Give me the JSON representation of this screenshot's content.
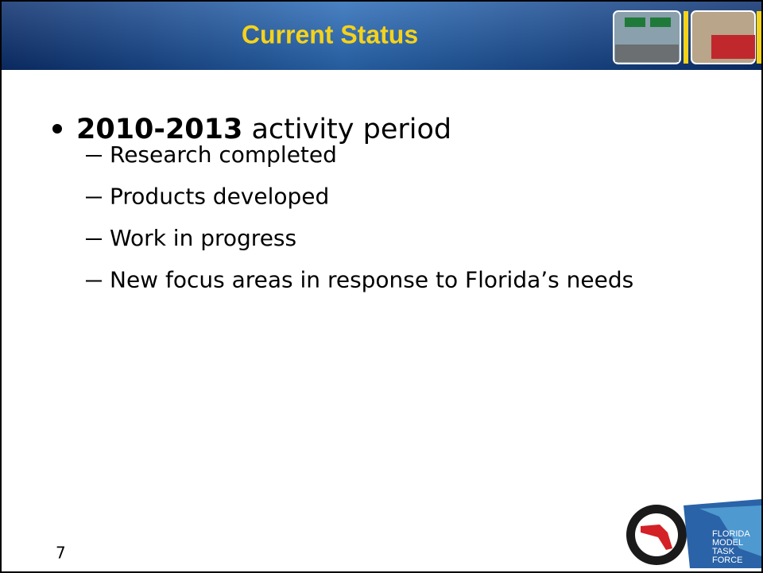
{
  "header": {
    "title": "Current Status"
  },
  "body": {
    "bullet": {
      "bold": "2010-2013",
      "text": " activity period"
    },
    "sub_bullets": [
      "Research completed",
      "Products developed",
      "Work in progress",
      "New focus areas in response to Florida’s needs"
    ]
  },
  "footer": {
    "slide_number": "7",
    "logo_text": [
      "FLORIDA",
      "MODEL",
      "TASK",
      "FORCE"
    ]
  }
}
